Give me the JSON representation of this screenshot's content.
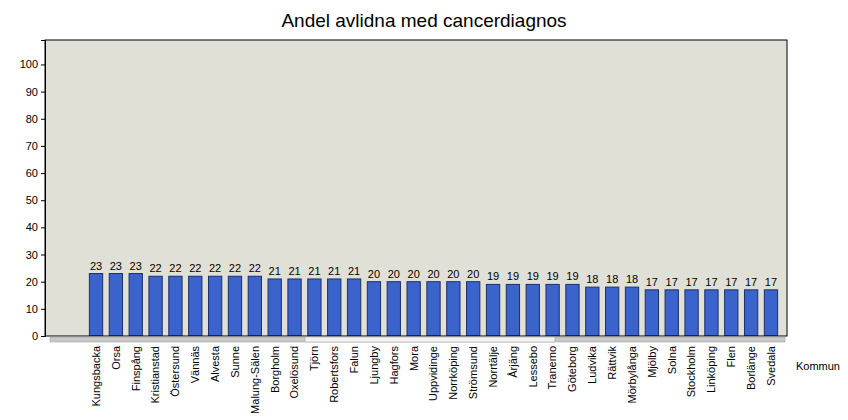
{
  "chart_data": {
    "type": "bar",
    "title": "Andel avlidna med cancerdiagnos",
    "x_label": "Kommun",
    "categories": [
      "Kungsbacka",
      "Orsa",
      "Finspång",
      "Kristianstad",
      "Östersund",
      "Vännäs",
      "Alvesta",
      "Sunne",
      "Malung-Sälen",
      "Borgholm",
      "Oxelösund",
      "Tjörn",
      "Robertsfors",
      "Falun",
      "Ljungby",
      "Hagfors",
      "Mora",
      "Uppvidinge",
      "Norrköping",
      "Strömsund",
      "Norrtälje",
      "Årjäng",
      "Lessebo",
      "Tranemo",
      "Göteborg",
      "Ludvika",
      "Rättvik",
      "Mörbylånga",
      "Mjölby",
      "Solna",
      "Stockholm",
      "Linköping",
      "Flen",
      "Borlänge",
      "Svedala"
    ],
    "values": [
      23,
      23,
      23,
      22,
      22,
      22,
      22,
      22,
      22,
      21,
      21,
      21,
      21,
      21,
      20,
      20,
      20,
      20,
      20,
      20,
      19,
      19,
      19,
      19,
      19,
      18,
      18,
      18,
      17,
      17,
      17,
      17,
      17,
      17,
      17
    ],
    "color": "#3a64cc",
    "ylim": [
      0,
      109
    ],
    "yticks": [
      0,
      10,
      20,
      30,
      40,
      50,
      60,
      70,
      80,
      90,
      100
    ],
    "grid": false,
    "data_labels": true
  }
}
